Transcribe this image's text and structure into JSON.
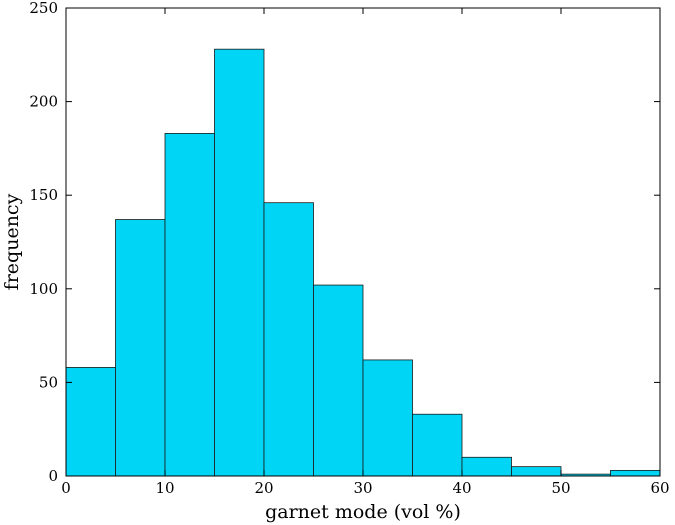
{
  "chart_data": {
    "type": "bar",
    "xlabel": "garnet mode (vol %)",
    "ylabel": "frequency",
    "xlim": [
      0,
      60
    ],
    "ylim": [
      0,
      250
    ],
    "x_ticks": [
      "0",
      "10",
      "20",
      "30",
      "40",
      "50",
      "60"
    ],
    "y_ticks": [
      "0",
      "50",
      "100",
      "150",
      "200",
      "250"
    ],
    "bin_width": 5,
    "bins": [
      {
        "start": 0,
        "end": 5,
        "value": 58
      },
      {
        "start": 5,
        "end": 10,
        "value": 137
      },
      {
        "start": 10,
        "end": 15,
        "value": 183
      },
      {
        "start": 15,
        "end": 20,
        "value": 228
      },
      {
        "start": 20,
        "end": 25,
        "value": 146
      },
      {
        "start": 25,
        "end": 30,
        "value": 102
      },
      {
        "start": 30,
        "end": 35,
        "value": 62
      },
      {
        "start": 35,
        "end": 40,
        "value": 33
      },
      {
        "start": 40,
        "end": 45,
        "value": 10
      },
      {
        "start": 45,
        "end": 50,
        "value": 5
      },
      {
        "start": 50,
        "end": 55,
        "value": 1
      },
      {
        "start": 55,
        "end": 60,
        "value": 3
      }
    ],
    "bar_color": "#00d5f5",
    "bar_edge_color": "#1a1a1a",
    "grid": false
  }
}
